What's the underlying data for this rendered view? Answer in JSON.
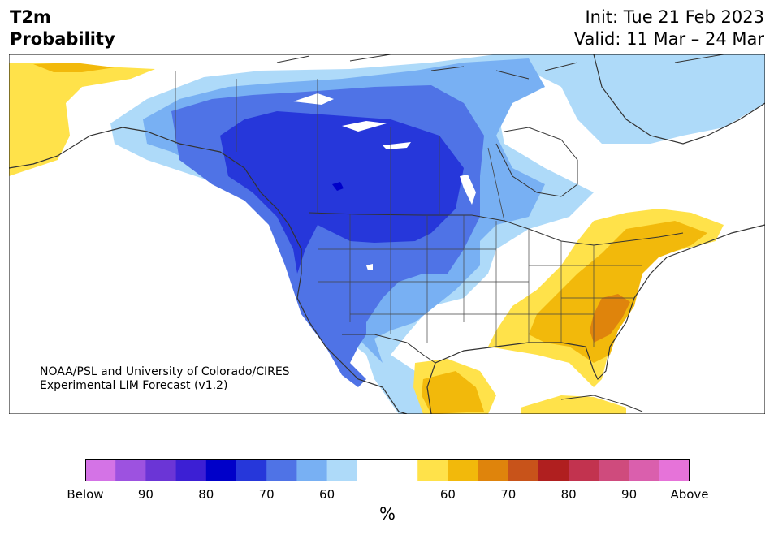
{
  "header": {
    "title_line1": "T2m",
    "title_line2": "Probability",
    "init": "Init: Tue 21 Feb 2023",
    "valid": "Valid: 11 Mar – 24 Mar"
  },
  "credit": {
    "line1": "NOAA/PSL and University of Colorado/CIRES",
    "line2": "Experimental LIM Forecast (v1.2)"
  },
  "colorbar": {
    "colors": [
      "#d473e6",
      "#9d52e0",
      "#6b35d6",
      "#3c1fd4",
      "#0000c9",
      "#2637da",
      "#4f73e6",
      "#78b0f3",
      "#aedaf9",
      "#ffffff",
      "#ffffff",
      "#ffe24a",
      "#f2b90b",
      "#df840c",
      "#c8531a",
      "#b01f1f",
      "#c2334f",
      "#cf4b7d",
      "#da5fad",
      "#e673d9"
    ],
    "labels": [
      "Below",
      "90",
      "80",
      "70",
      "60",
      "60",
      "70",
      "80",
      "90",
      "Above"
    ],
    "unit": "%"
  },
  "map": {
    "ocean_color": "#ffffff",
    "land_color": "#ffffff",
    "border_color": "#333333"
  }
}
